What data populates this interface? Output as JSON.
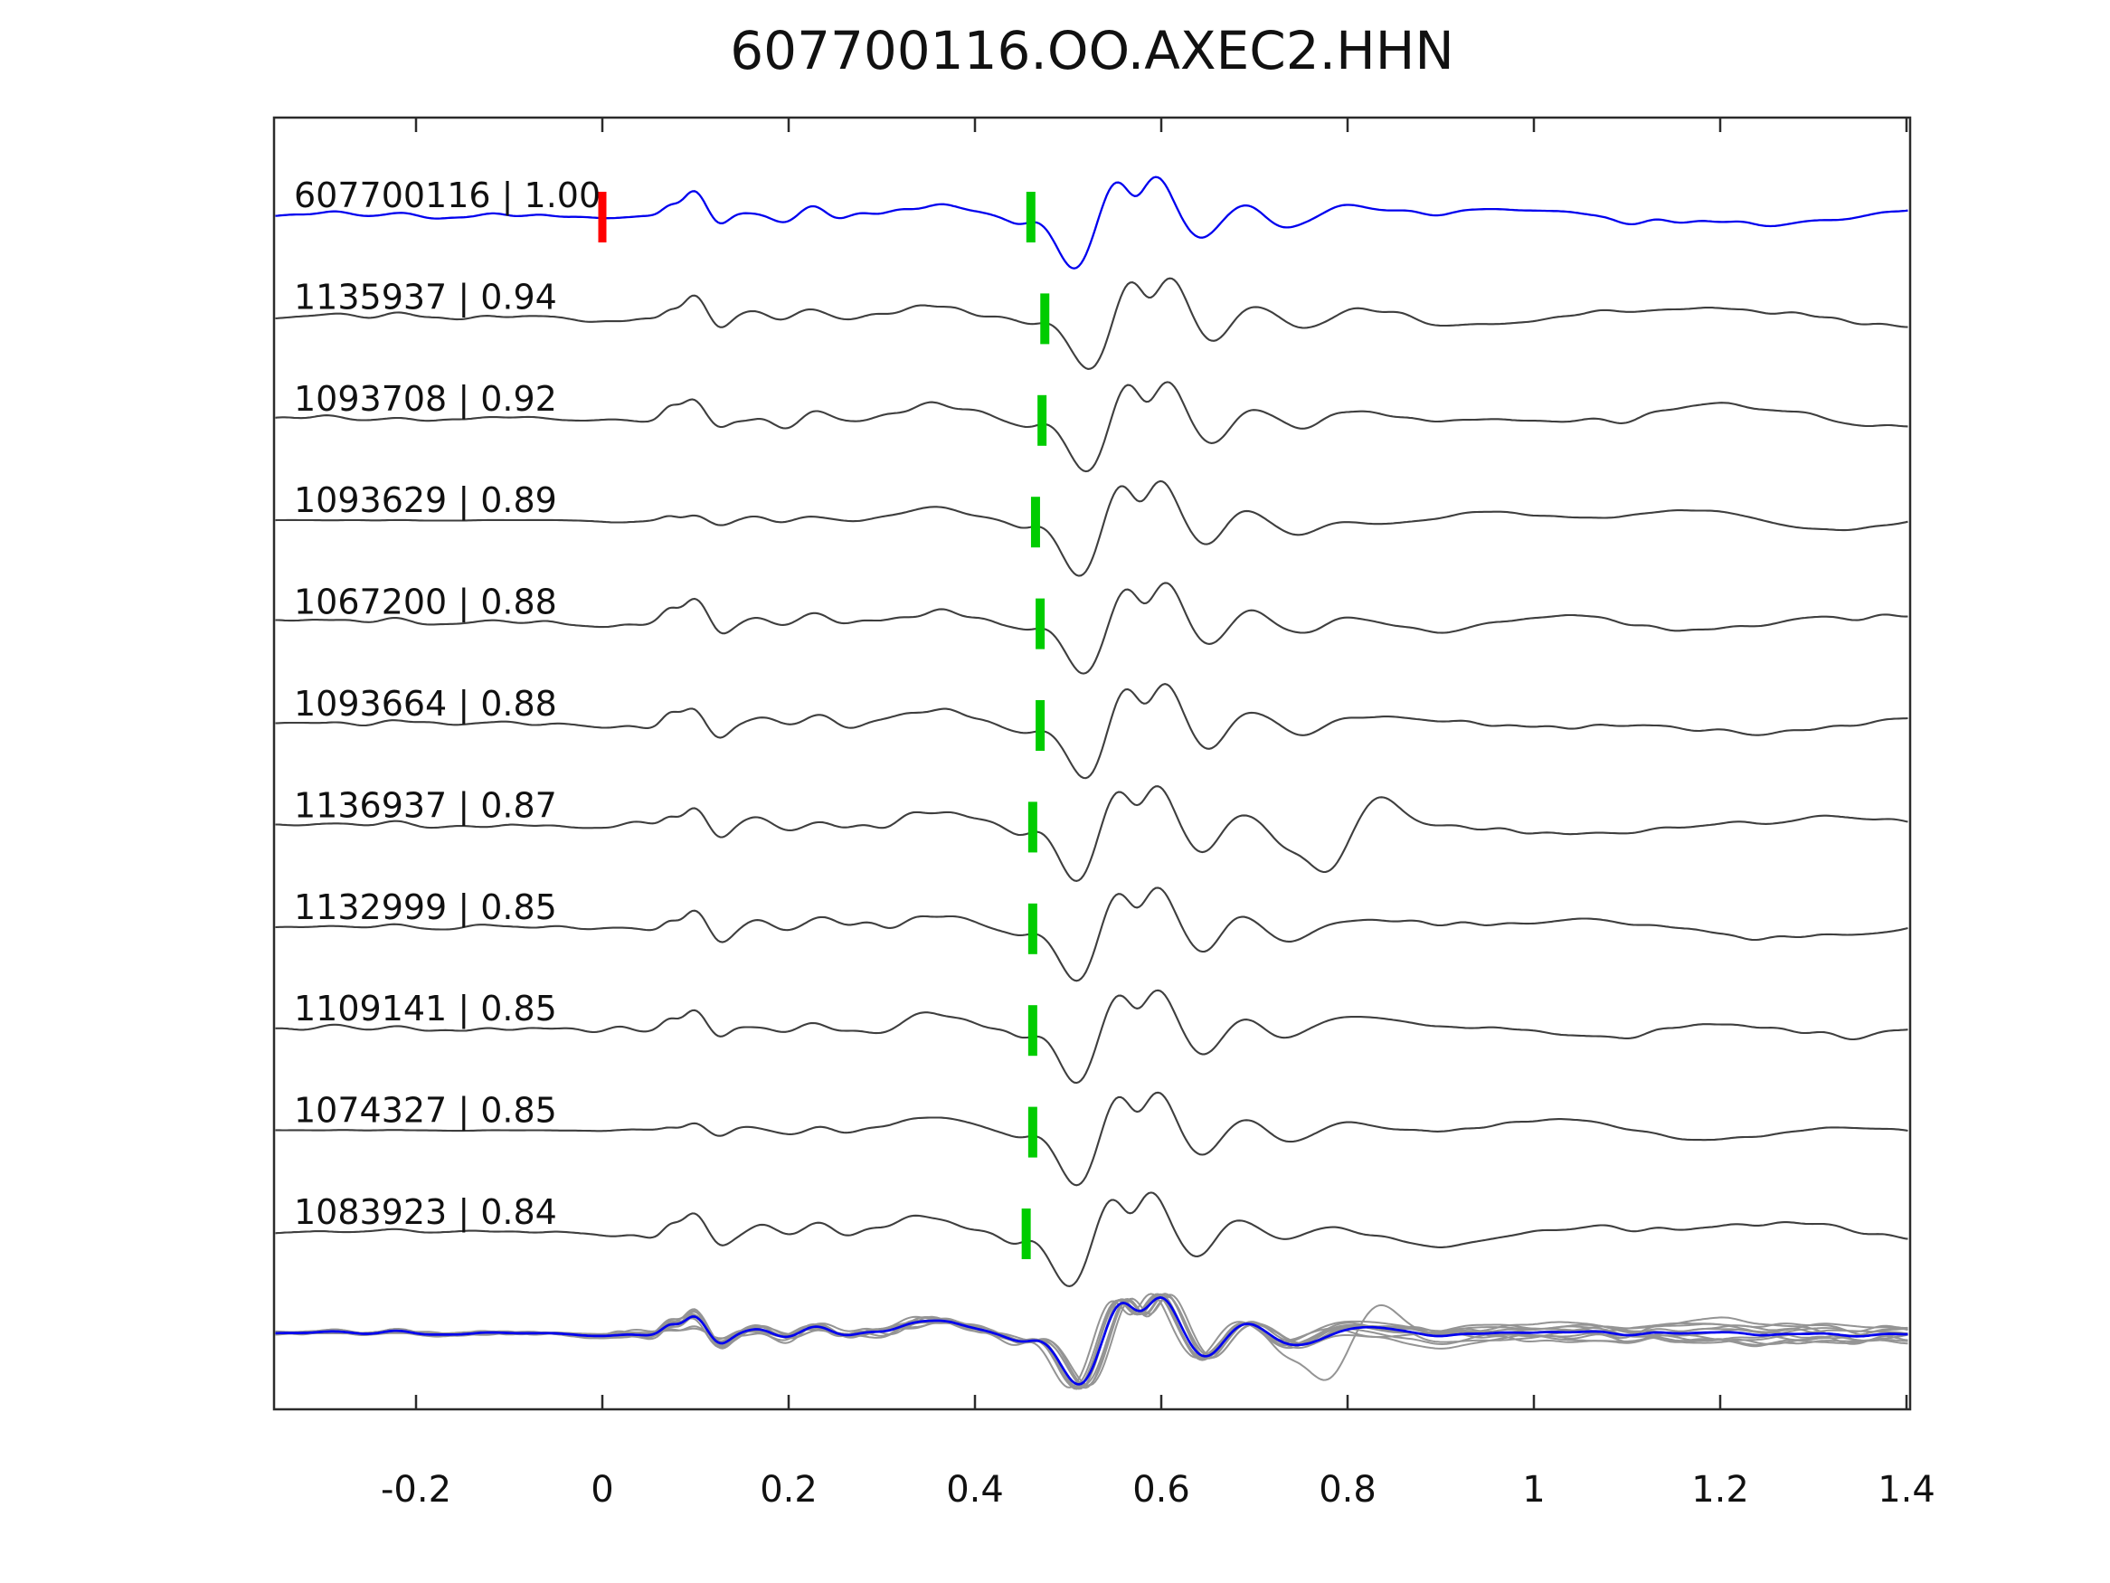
{
  "title": "607700116.OO.AXEC2.HHN",
  "colors": {
    "background": "#ffffff",
    "axis": "#2b2b2b",
    "text": "#111111",
    "reference_trace": "#0000ee",
    "trace": "#3e3e3e",
    "stack_member": "#949494",
    "stack_mean": "#0000ee",
    "pick_marker": "#00cc00",
    "reference_marker": "#ff0000"
  },
  "chart_data": {
    "type": "waveform",
    "title": "607700116.OO.AXEC2.HHN",
    "xlabel": "",
    "ylabel": "",
    "x_axis": {
      "range": [
        -0.35,
        1.4
      ],
      "ticks": [
        -0.2,
        0,
        0.2,
        0.4,
        0.6,
        0.8,
        1,
        1.2,
        1.4
      ],
      "tick_labels": [
        "-0.2",
        "0",
        "0.2",
        "0.4",
        "0.6",
        "0.8",
        "1",
        "1.2",
        "1.4"
      ]
    },
    "reference_marker_time": 0,
    "traces": [
      {
        "id": "607700116",
        "correlation": "1.00",
        "label": "607700116 | 1.00",
        "pick_time": 0.46,
        "is_reference": true,
        "quiet_start": false,
        "outlier_trough_time": null
      },
      {
        "id": "1135937",
        "correlation": "0.94",
        "label": "1135937 | 0.94",
        "pick_time": 0.475,
        "is_reference": false,
        "quiet_start": false,
        "outlier_trough_time": null
      },
      {
        "id": "1093708",
        "correlation": "0.92",
        "label": "1093708 | 0.92",
        "pick_time": 0.472,
        "is_reference": false,
        "quiet_start": false,
        "outlier_trough_time": null
      },
      {
        "id": "1093629",
        "correlation": "0.89",
        "label": "1093629 | 0.89",
        "pick_time": 0.465,
        "is_reference": false,
        "quiet_start": true,
        "outlier_trough_time": null
      },
      {
        "id": "1067200",
        "correlation": "0.88",
        "label": "1067200 | 0.88",
        "pick_time": 0.47,
        "is_reference": false,
        "quiet_start": false,
        "outlier_trough_time": null
      },
      {
        "id": "1093664",
        "correlation": "0.88",
        "label": "1093664 | 0.88",
        "pick_time": 0.47,
        "is_reference": false,
        "quiet_start": false,
        "outlier_trough_time": null
      },
      {
        "id": "1136937",
        "correlation": "0.87",
        "label": "1136937 | 0.87",
        "pick_time": 0.462,
        "is_reference": false,
        "quiet_start": false,
        "outlier_trough_time": 0.78
      },
      {
        "id": "1132999",
        "correlation": "0.85",
        "label": "1132999 | 0.85",
        "pick_time": 0.462,
        "is_reference": false,
        "quiet_start": false,
        "outlier_trough_time": null
      },
      {
        "id": "1109141",
        "correlation": "0.85",
        "label": "1109141 | 0.85",
        "pick_time": 0.462,
        "is_reference": false,
        "quiet_start": false,
        "outlier_trough_time": null
      },
      {
        "id": "1074327",
        "correlation": "0.85",
        "label": "1074327 | 0.85",
        "pick_time": 0.462,
        "is_reference": false,
        "quiet_start": true,
        "outlier_trough_time": null
      },
      {
        "id": "1083923",
        "correlation": "0.84",
        "label": "1083923 | 0.84",
        "pick_time": 0.455,
        "is_reference": false,
        "quiet_start": false,
        "outlier_trough_time": null
      }
    ],
    "stack": {
      "members": 11,
      "position": "bottom",
      "has_mean_overlay": true
    }
  }
}
